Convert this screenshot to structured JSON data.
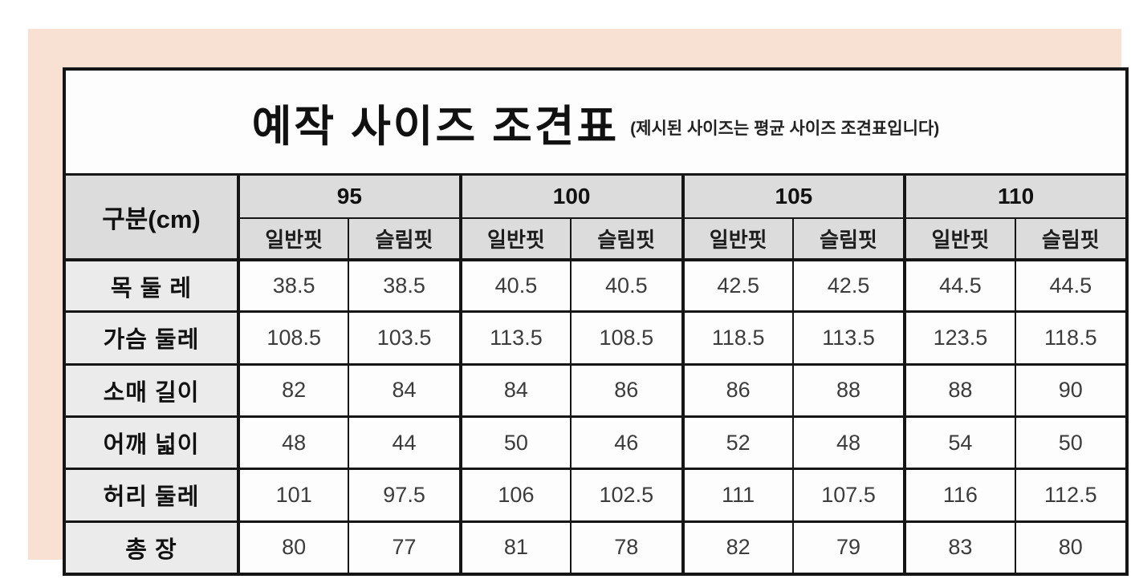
{
  "chart_data": {
    "type": "table",
    "title": "예작 사이즈 조견표",
    "subtitle": "(제시된 사이즈는 평균 사이즈 조견표입니다)",
    "corner_header": "구분(cm)",
    "sizes": [
      "95",
      "100",
      "105",
      "110"
    ],
    "fit_labels": [
      "일반핏",
      "슬림핏"
    ],
    "rows": [
      {
        "label": "목 둘 레",
        "values": [
          "38.5",
          "38.5",
          "40.5",
          "40.5",
          "42.5",
          "42.5",
          "44.5",
          "44.5"
        ]
      },
      {
        "label": "가슴 둘레",
        "values": [
          "108.5",
          "103.5",
          "113.5",
          "108.5",
          "118.5",
          "113.5",
          "123.5",
          "118.5"
        ]
      },
      {
        "label": "소매 길이",
        "values": [
          "82",
          "84",
          "84",
          "86",
          "86",
          "88",
          "88",
          "90"
        ]
      },
      {
        "label": "어깨 넓이",
        "values": [
          "48",
          "44",
          "50",
          "46",
          "52",
          "48",
          "54",
          "50"
        ]
      },
      {
        "label": "허리 둘레",
        "values": [
          "101",
          "97.5",
          "106",
          "102.5",
          "111",
          "107.5",
          "116",
          "112.5"
        ]
      },
      {
        "label": "총 장",
        "values": [
          "80",
          "77",
          "81",
          "78",
          "82",
          "79",
          "83",
          "80"
        ]
      }
    ],
    "colors": {
      "mat": "#f8e1d2",
      "header_bg": "#dcdcdc",
      "label_bg": "#ebebeb",
      "cell_bg": "#fdfdfd",
      "border": "#151515",
      "title_text": "#111111",
      "value_text": "#3c3c3c"
    }
  }
}
